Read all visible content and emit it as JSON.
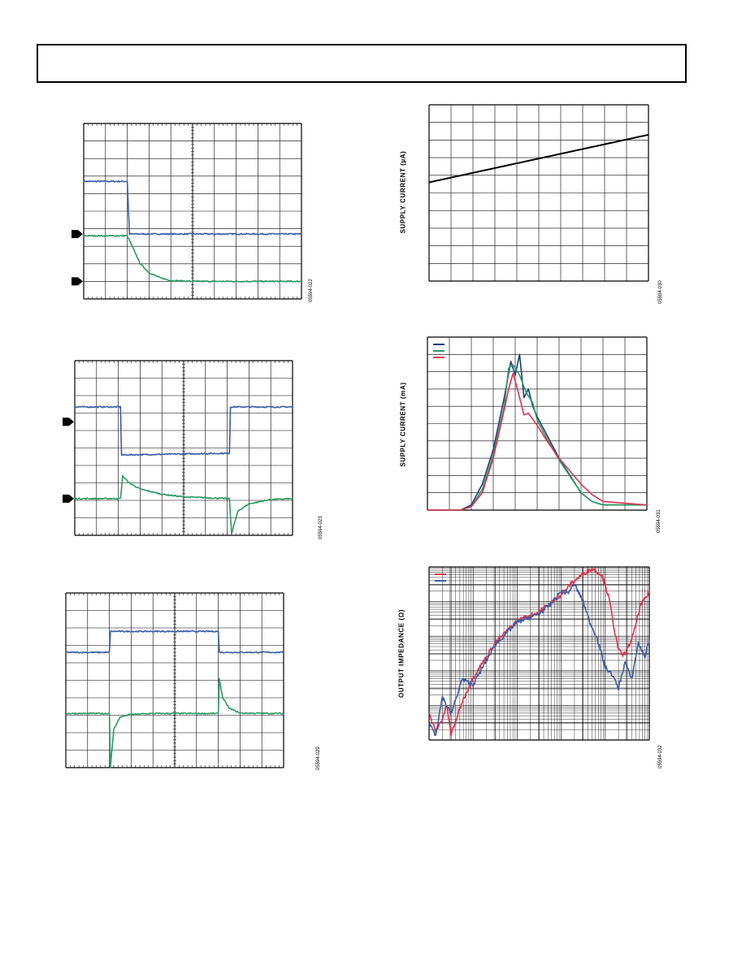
{
  "header": {
    "title": ""
  },
  "colors": {
    "blue": "#3c5ea6",
    "green": "#2e9b63",
    "red": "#e0334f",
    "navy": "#173f7c",
    "black": "#000000",
    "grid": "#000000"
  },
  "chart_data": [
    {
      "id": "fig-022",
      "figure_id": "05594-022",
      "type": "line",
      "grid": true,
      "ylabel": "",
      "xlabel": "",
      "ground_markers": 2,
      "series": [
        {
          "name": "",
          "color": "blue",
          "x": [
            0,
            2,
            2.1,
            10
          ],
          "y": [
            6.7,
            6.7,
            3.7,
            3.7
          ]
        },
        {
          "name": "",
          "color": "green",
          "x": [
            0,
            2,
            2.3,
            2.6,
            3,
            3.5,
            4,
            5,
            6,
            8,
            10
          ],
          "y": [
            3.6,
            3.6,
            2.8,
            2.0,
            1.5,
            1.2,
            1.05,
            1.0,
            1.0,
            1.0,
            1.0
          ]
        }
      ]
    },
    {
      "id": "fig-023",
      "figure_id": "05594-023",
      "type": "line",
      "grid": true,
      "ylabel": "",
      "xlabel": "",
      "ground_markers": 2,
      "series": [
        {
          "name": "",
          "color": "blue",
          "x": [
            0,
            2.1,
            2.15,
            7.1,
            7.15,
            10
          ],
          "y": [
            7.35,
            7.35,
            4.6,
            4.7,
            7.35,
            7.35
          ]
        },
        {
          "name": "",
          "color": "green",
          "x": [
            0,
            2.1,
            2.2,
            2.5,
            3,
            4,
            5,
            6,
            7.1,
            7.2,
            7.5,
            8,
            9,
            10
          ],
          "y": [
            2.1,
            2.1,
            3.4,
            3.0,
            2.65,
            2.35,
            2.2,
            2.15,
            2.1,
            0.1,
            1.4,
            1.8,
            2.05,
            2.1
          ]
        }
      ]
    },
    {
      "id": "fig-029",
      "figure_id": "05594-029",
      "type": "line",
      "grid": true,
      "ylabel": "",
      "xlabel": "",
      "ground_markers": 0,
      "series": [
        {
          "name": "",
          "color": "blue",
          "x": [
            0,
            2,
            2.05,
            7,
            7.05,
            10
          ],
          "y": [
            6.6,
            6.6,
            7.8,
            7.8,
            6.6,
            6.6
          ]
        },
        {
          "name": "",
          "color": "green",
          "x": [
            0,
            2,
            2.05,
            2.2,
            2.5,
            3,
            4,
            7,
            7.05,
            7.2,
            7.5,
            8,
            10
          ],
          "y": [
            3.1,
            3.1,
            0,
            2.2,
            2.9,
            3.05,
            3.1,
            3.1,
            5.1,
            4.0,
            3.4,
            3.12,
            3.1
          ]
        }
      ]
    },
    {
      "id": "fig-030",
      "figure_id": "05594-030",
      "type": "line",
      "grid": true,
      "ylabel": "SUPPLY CURRENT (µA)",
      "xlabel": "",
      "series": [
        {
          "name": "",
          "color": "black",
          "x": [
            0,
            10
          ],
          "y": [
            5.6,
            8.3
          ]
        }
      ]
    },
    {
      "id": "fig-031",
      "figure_id": "05594-031",
      "type": "line",
      "grid": true,
      "ylabel": "SUPPLY CURRENT (mA)",
      "xlabel": "",
      "legend": {
        "placement": "top-left",
        "entries": [
          "",
          "",
          ""
        ]
      },
      "series": [
        {
          "name": "",
          "color": "navy",
          "x": [
            0,
            1.5,
            2,
            2.5,
            3,
            3.5,
            3.8,
            4,
            4.2,
            4.4,
            4.6,
            4.8,
            5,
            5.5,
            6,
            7,
            7.5,
            8,
            10
          ],
          "y": [
            0,
            0,
            0.3,
            1.5,
            3.5,
            6.5,
            8.6,
            7.8,
            9.0,
            6.5,
            7.0,
            6.0,
            5.4,
            4.2,
            3.0,
            1.0,
            0.5,
            0.3,
            0.3
          ]
        },
        {
          "name": "",
          "color": "green",
          "x": [
            0,
            1.5,
            2,
            2.5,
            3,
            3.5,
            3.7,
            3.9,
            4.2,
            4.5,
            4.8,
            5,
            5.5,
            6,
            7,
            7.5,
            8,
            10
          ],
          "y": [
            0,
            0,
            0.2,
            1.2,
            3.2,
            6.0,
            8.2,
            8.4,
            7.8,
            6.8,
            6.2,
            5.2,
            4.0,
            2.9,
            1.0,
            0.5,
            0.3,
            0.3
          ]
        },
        {
          "name": "",
          "color": "red",
          "x": [
            0,
            1.5,
            2,
            2.5,
            3,
            3.5,
            3.7,
            3.9,
            4.1,
            4.4,
            4.6,
            5,
            5.5,
            6,
            7,
            7.5,
            8,
            10
          ],
          "y": [
            0,
            0,
            0.2,
            1.0,
            3.0,
            5.8,
            7.0,
            7.9,
            7.0,
            5.5,
            5.6,
            4.9,
            3.9,
            3.0,
            1.5,
            0.9,
            0.5,
            0.3
          ]
        }
      ]
    },
    {
      "id": "fig-032",
      "figure_id": "05594-032",
      "type": "line",
      "grid": true,
      "xscale": "log",
      "yscale": "log",
      "ylabel": "OUTPUT IMPEDANCE (Ω)",
      "xlabel": "",
      "legend": {
        "placement": "top-left",
        "entries": [
          "",
          ""
        ]
      },
      "series": [
        {
          "name": "",
          "color": "red",
          "x": [
            0,
            0.3,
            0.6,
            0.8,
            1,
            1.5,
            2,
            3,
            4,
            5,
            5.5,
            6,
            6.5,
            7,
            7.4,
            7.8,
            8,
            8.2,
            8.4,
            8.6,
            8.8,
            9,
            9.3,
            9.6,
            10
          ],
          "y": [
            1.5,
            0.5,
            1.2,
            2.0,
            0.3,
            2.2,
            3.6,
            5.6,
            6.9,
            7.4,
            7.9,
            8.4,
            9.1,
            9.6,
            9.9,
            9.6,
            9.0,
            8.0,
            6.5,
            5.2,
            4.9,
            5.2,
            6.2,
            7.8,
            8.5
          ]
        },
        {
          "name": "",
          "color": "blue",
          "x": [
            0,
            0.3,
            0.6,
            1,
            1.5,
            2,
            3,
            4,
            5,
            5.5,
            6,
            6.3,
            6.6,
            7,
            7.3,
            7.6,
            8,
            8.3,
            8.6,
            8.9,
            9.2,
            9.5,
            9.8,
            10
          ],
          "y": [
            1.0,
            0.3,
            2.5,
            1.5,
            3.5,
            3.2,
            5.5,
            6.8,
            7.3,
            7.8,
            8.6,
            8.5,
            9.0,
            8.0,
            6.8,
            6.0,
            4.2,
            3.8,
            3.0,
            4.5,
            3.5,
            5.6,
            4.8,
            5.8
          ]
        }
      ]
    }
  ]
}
